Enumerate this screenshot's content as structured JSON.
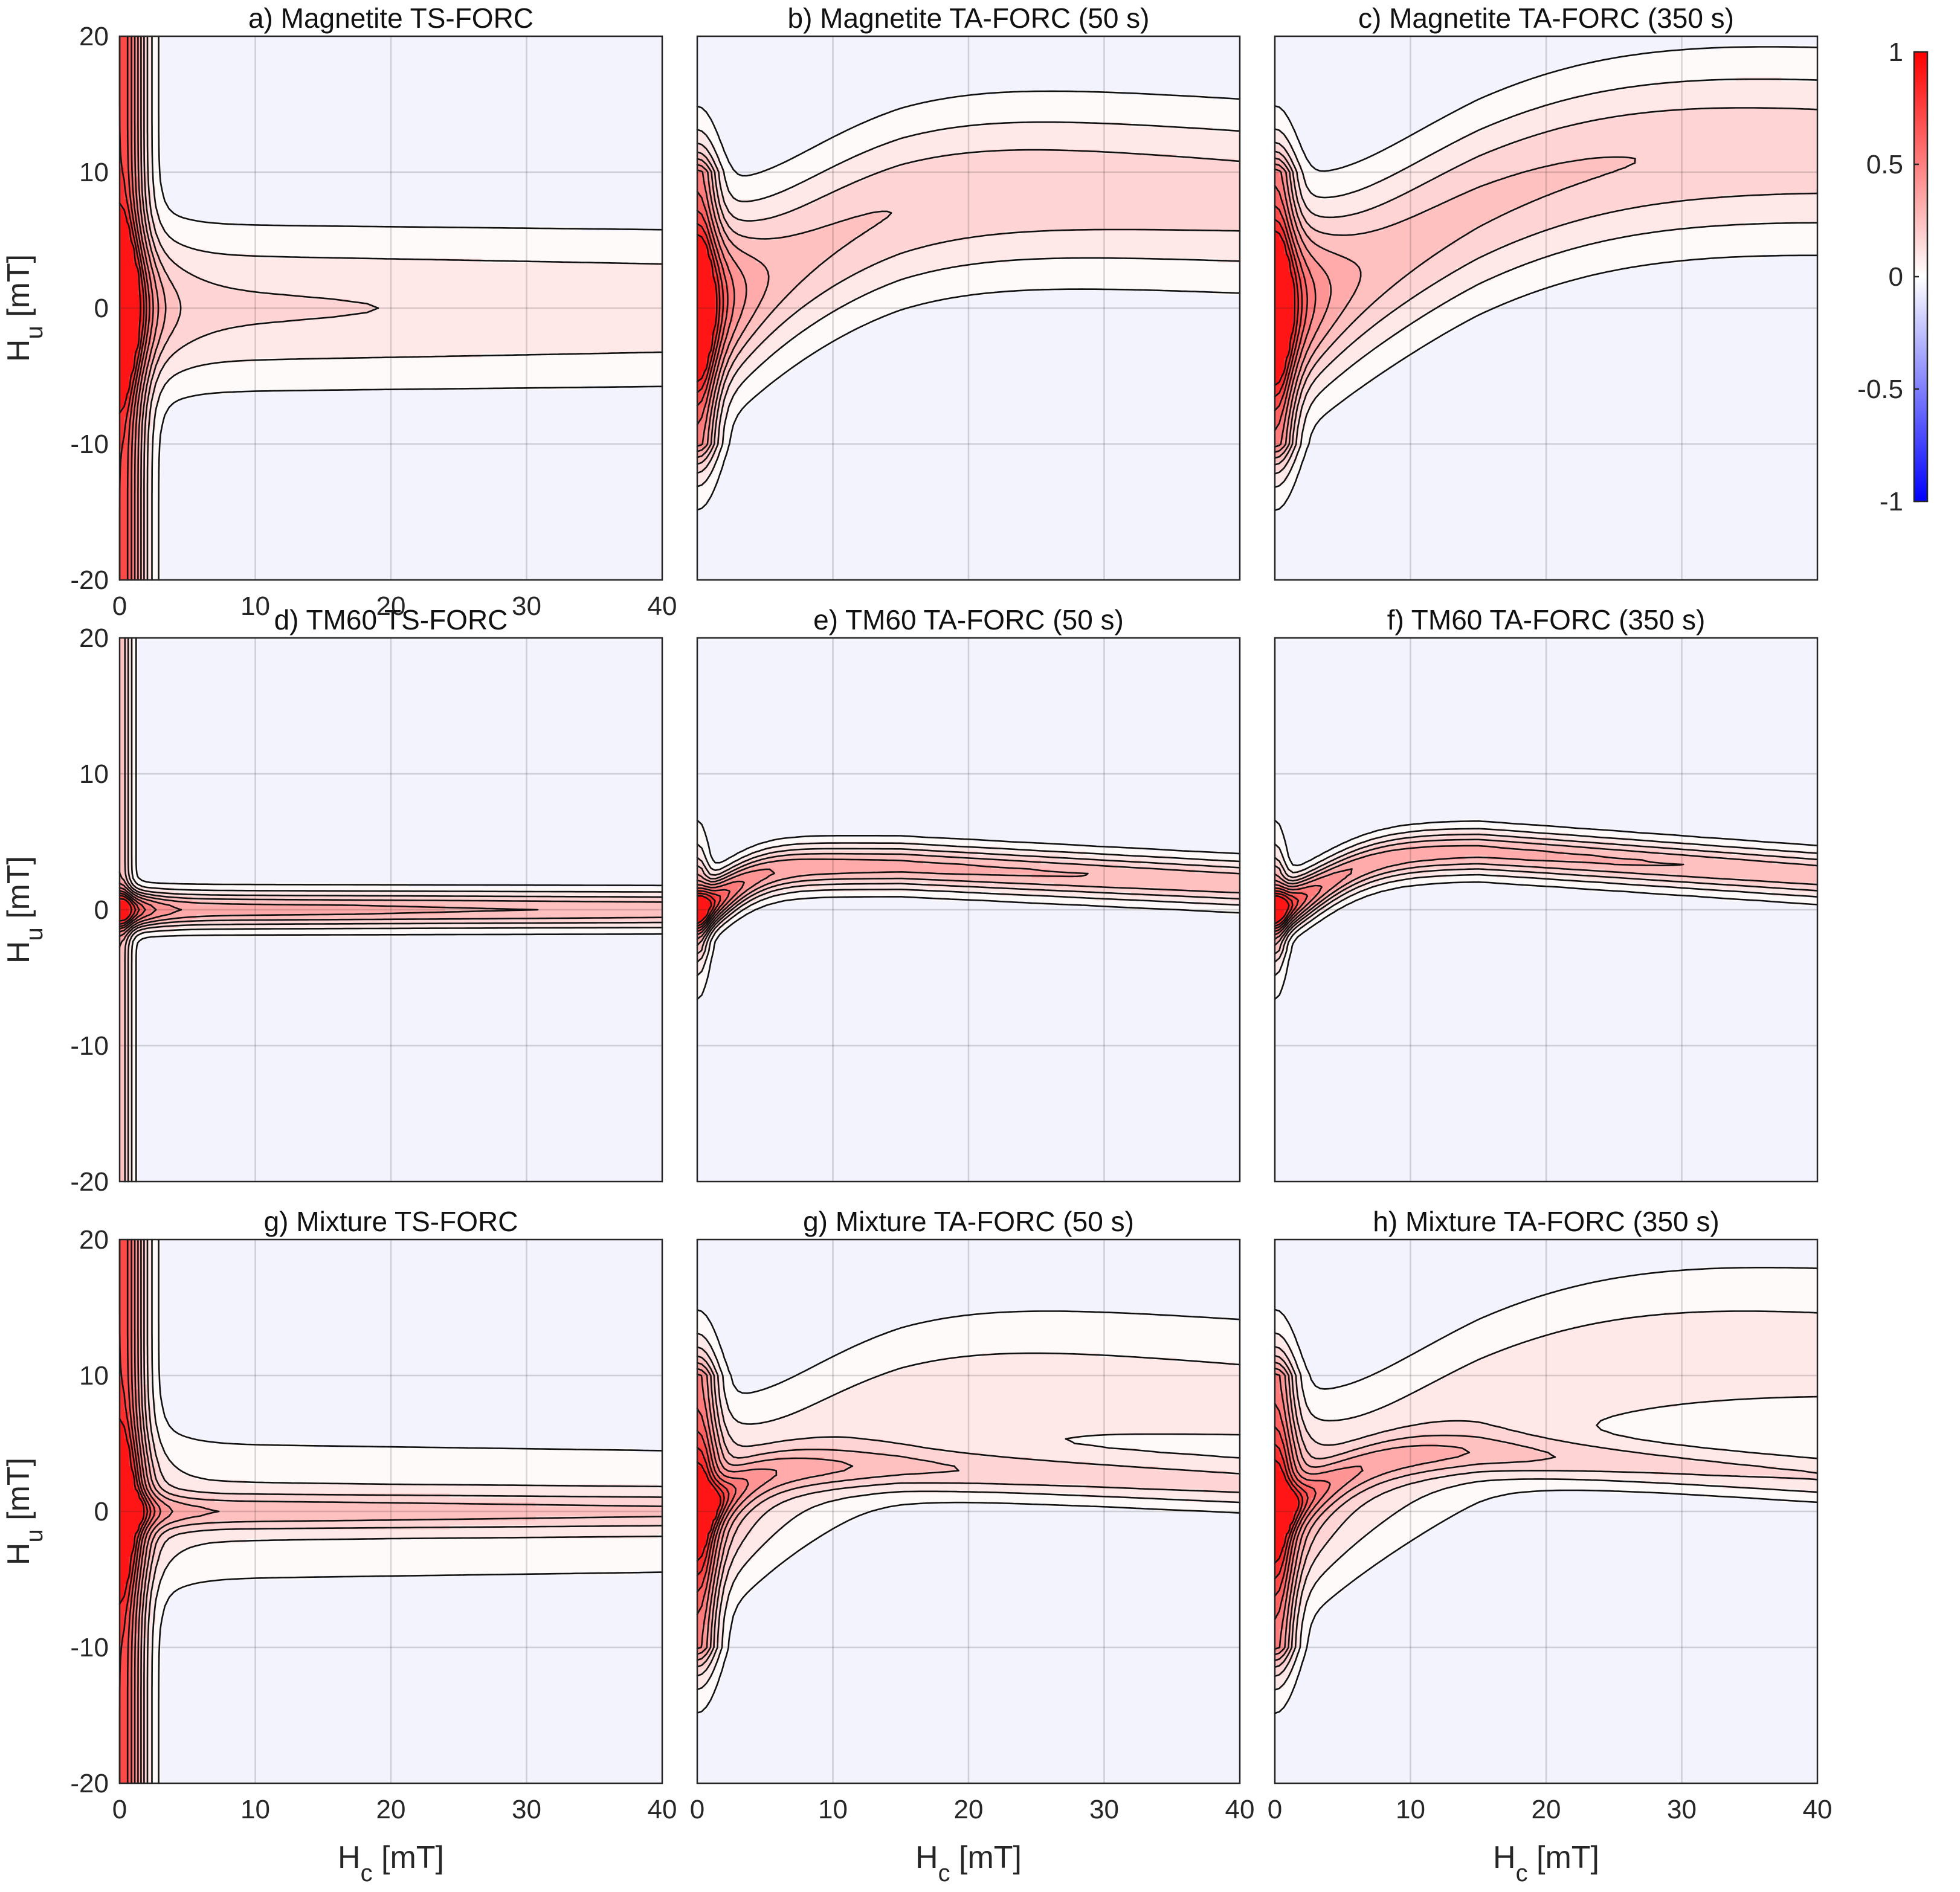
{
  "figure": {
    "colorbar": {
      "ticks": [
        "1",
        "0.5",
        "0",
        "-0.5",
        "-1"
      ],
      "range": [
        -1,
        1
      ],
      "colors": {
        "negative": "#0000ff",
        "zero": "#ffffff",
        "positive": "#ff0000"
      }
    }
  },
  "chart_data": [
    {
      "type": "heatmap",
      "style": "filled-contour",
      "title": "a) Magnetite TS-FORC",
      "xlabel": "",
      "ylabel": "Hu [mT]",
      "xlim": [
        0,
        40
      ],
      "ylim": [
        -20,
        20
      ],
      "xticks": [
        "0",
        "10",
        "20",
        "30",
        "40"
      ],
      "yticks": [
        "20",
        "10",
        "0",
        "-10",
        "-20"
      ],
      "grid": true,
      "model": {
        "kind": "ridge",
        "sigma_hu": 3.6,
        "peak_hc": 0.5,
        "decay_hc": 1.6,
        "tail": 0.22,
        "vertical": 0.85,
        "vertical_width": 1.2,
        "vertical_extent": 20
      }
    },
    {
      "type": "heatmap",
      "style": "filled-contour",
      "title": "b) Magnetite TA-FORC (50 s)",
      "xlabel": "",
      "ylabel": "",
      "xlim": [
        0,
        40
      ],
      "ylim": [
        -20,
        20
      ],
      "xticks": [],
      "yticks": [],
      "grid": true,
      "model": {
        "kind": "rising",
        "sigma_hu": 4.0,
        "peak_hc": 0.6,
        "decay_hc": 2.0,
        "tail": 0.3,
        "vertical": 0.55,
        "vertical_width": 1.0,
        "vertical_extent": 10,
        "offset_max": 9.5,
        "offset_rate": 0.8,
        "offset_drift": 0.05
      }
    },
    {
      "type": "heatmap",
      "style": "filled-contour",
      "title": "c) Magnetite TA-FORC (350 s)",
      "xlabel": "",
      "ylabel": "",
      "xlim": [
        0,
        40
      ],
      "ylim": [
        -20,
        20
      ],
      "xticks": [],
      "yticks": [],
      "grid": true,
      "model": {
        "kind": "rising",
        "sigma_hu": 4.2,
        "peak_hc": 0.6,
        "decay_hc": 2.2,
        "tail": 0.32,
        "vertical": 0.55,
        "vertical_width": 1.0,
        "vertical_extent": 10,
        "offset_max": 13.0,
        "offset_rate": 0.78,
        "offset_drift": 0.05
      }
    },
    {
      "type": "heatmap",
      "style": "filled-contour",
      "title": "d) TM60 TS-FORC",
      "xlabel": "",
      "ylabel": "Hu [mT]",
      "xlim": [
        0,
        40
      ],
      "ylim": [
        -20,
        20
      ],
      "xticks": [],
      "yticks": [
        "20",
        "10",
        "0",
        "-10",
        "-20"
      ],
      "grid": true,
      "model": {
        "kind": "narrow",
        "sigma_hu": 0.9,
        "peak_hc": 0.5,
        "decay_hc": 1.5,
        "tail": 0.42,
        "vertical": 0.35,
        "vertical_width": 0.6,
        "vertical_extent": 20,
        "offset_max": 0,
        "offset_rate": 1,
        "offset_drift": 0
      }
    },
    {
      "type": "heatmap",
      "style": "filled-contour",
      "title": "e) TM60 TA-FORC (50 s)",
      "xlabel": "",
      "ylabel": "",
      "xlim": [
        0,
        40
      ],
      "ylim": [
        -20,
        20
      ],
      "xticks": [],
      "yticks": [],
      "grid": true,
      "model": {
        "kind": "narrow",
        "sigma_hu": 1.1,
        "peak_hc": 0.6,
        "decay_hc": 2.0,
        "tail": 0.42,
        "vertical": 0.3,
        "vertical_width": 0.6,
        "vertical_extent": 3,
        "offset_max": 3.2,
        "offset_rate": 0.9,
        "offset_drift": 0.05
      }
    },
    {
      "type": "heatmap",
      "style": "filled-contour",
      "title": "f) TM60 TA-FORC (350 s)",
      "xlabel": "",
      "ylabel": "",
      "xlim": [
        0,
        40
      ],
      "ylim": [
        -20,
        20
      ],
      "xticks": [],
      "yticks": [],
      "grid": true,
      "model": {
        "kind": "narrow",
        "sigma_hu": 1.1,
        "peak_hc": 0.6,
        "decay_hc": 2.0,
        "tail": 0.42,
        "vertical": 0.3,
        "vertical_width": 0.6,
        "vertical_extent": 3,
        "offset_max": 4.3,
        "offset_rate": 0.8,
        "offset_drift": 0.07
      }
    },
    {
      "type": "heatmap",
      "style": "filled-contour",
      "title": "g) Mixture TS-FORC",
      "xlabel": "Hc [mT]",
      "ylabel": "Hu [mT]",
      "xlim": [
        0,
        40
      ],
      "ylim": [
        -20,
        20
      ],
      "xticks": [
        "0",
        "10",
        "20",
        "30",
        "40"
      ],
      "yticks": [
        "20",
        "10",
        "0",
        "-10",
        "-20"
      ],
      "grid": true,
      "model": {
        "kind": "mixture",
        "a": {
          "sigma_hu": 3.6,
          "peak_hc": 0.5,
          "decay_hc": 1.6,
          "tail": 0.22,
          "offset_max": 0,
          "offset_rate": 1,
          "offset_drift": 0
        },
        "b": {
          "sigma_hu": 0.9,
          "peak_hc": 0.5,
          "decay_hc": 1.5,
          "tail": 0.42,
          "offset_max": 0,
          "offset_rate": 1,
          "offset_drift": 0
        },
        "vertical": 0.85,
        "vertical_width": 1.2,
        "vertical_extent": 20
      }
    },
    {
      "type": "heatmap",
      "style": "filled-contour",
      "title": "g) Mixture TA-FORC (50 s)",
      "xlabel": "Hc [mT]",
      "ylabel": "",
      "xlim": [
        0,
        40
      ],
      "ylim": [
        -20,
        20
      ],
      "xticks": [
        "0",
        "10",
        "20",
        "30",
        "40"
      ],
      "yticks": [],
      "grid": true,
      "model": {
        "kind": "mixture",
        "a": {
          "sigma_hu": 4.0,
          "peak_hc": 0.6,
          "decay_hc": 2.0,
          "tail": 0.3,
          "offset_max": 9.5,
          "offset_rate": 0.8,
          "offset_drift": 0.05
        },
        "b": {
          "sigma_hu": 1.1,
          "peak_hc": 0.6,
          "decay_hc": 2.0,
          "tail": 0.42,
          "offset_max": 3.2,
          "offset_rate": 0.9,
          "offset_drift": 0.05
        },
        "vertical": 0.55,
        "vertical_width": 1.0,
        "vertical_extent": 10
      }
    },
    {
      "type": "heatmap",
      "style": "filled-contour",
      "title": "h) Mixture TA-FORC (350 s)",
      "xlabel": "Hc [mT]",
      "ylabel": "",
      "xlim": [
        0,
        40
      ],
      "ylim": [
        -20,
        20
      ],
      "xticks": [
        "0",
        "10",
        "20",
        "30",
        "40"
      ],
      "yticks": [],
      "grid": true,
      "model": {
        "kind": "mixture",
        "a": {
          "sigma_hu": 4.2,
          "peak_hc": 0.6,
          "decay_hc": 2.2,
          "tail": 0.32,
          "offset_max": 13.0,
          "offset_rate": 0.78,
          "offset_drift": 0.05
        },
        "b": {
          "sigma_hu": 1.1,
          "peak_hc": 0.6,
          "decay_hc": 2.0,
          "tail": 0.42,
          "offset_max": 4.3,
          "offset_rate": 0.8,
          "offset_drift": 0.07
        },
        "vertical": 0.55,
        "vertical_width": 1.0,
        "vertical_extent": 10
      }
    }
  ],
  "contour_levels": [
    0.05,
    0.12,
    0.2,
    0.28,
    0.36,
    0.45,
    0.55,
    0.65,
    0.75,
    0.85,
    0.95
  ]
}
